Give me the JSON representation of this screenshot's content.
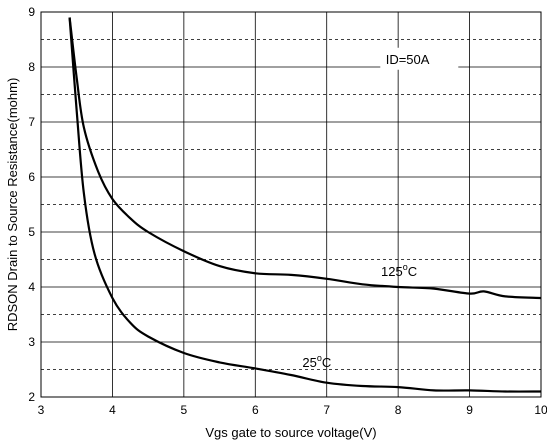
{
  "chart_data": {
    "type": "line",
    "xlabel": "Vgs gate to source voltage(V)",
    "ylabel": "RDSON Drain to Source Resistance(mohm)",
    "xlim": [
      3,
      10
    ],
    "ylim": [
      2,
      9
    ],
    "x_ticks": [
      "3",
      "4",
      "5",
      "6",
      "7",
      "8",
      "9",
      "10"
    ],
    "y_ticks": [
      "2",
      "3",
      "4",
      "5",
      "6",
      "7",
      "8",
      "9"
    ],
    "grid": true,
    "grid_style": "solid major vertical at integers, solid major horizontal at integers, dashed minor horizontal at half-integers",
    "annotation": "ID=50A",
    "series": [
      {
        "name": "125°C",
        "label_main": "125",
        "label_sup": "o",
        "label_unit": "C",
        "x": [
          3.4,
          3.5,
          3.6,
          3.8,
          4.0,
          4.25,
          4.5,
          5.0,
          5.5,
          6.0,
          6.5,
          7.0,
          7.5,
          8.0,
          8.5,
          9.0,
          9.2,
          9.5,
          10.0
        ],
        "y": [
          8.9,
          7.8,
          6.9,
          6.1,
          5.6,
          5.25,
          5.0,
          4.65,
          4.38,
          4.25,
          4.22,
          4.15,
          4.05,
          4.0,
          3.97,
          3.88,
          3.92,
          3.83,
          3.8
        ]
      },
      {
        "name": "25°C",
        "label_main": "25",
        "label_sup": "o",
        "label_unit": "C",
        "x": [
          3.4,
          3.5,
          3.6,
          3.75,
          4.0,
          4.25,
          4.5,
          5.0,
          5.5,
          6.0,
          6.5,
          7.0,
          7.5,
          8.0,
          8.5,
          9.0,
          9.5,
          10.0
        ],
        "y": [
          8.9,
          7.2,
          5.7,
          4.6,
          3.8,
          3.35,
          3.1,
          2.8,
          2.63,
          2.52,
          2.4,
          2.26,
          2.2,
          2.18,
          2.12,
          2.12,
          2.1,
          2.1
        ]
      }
    ]
  }
}
